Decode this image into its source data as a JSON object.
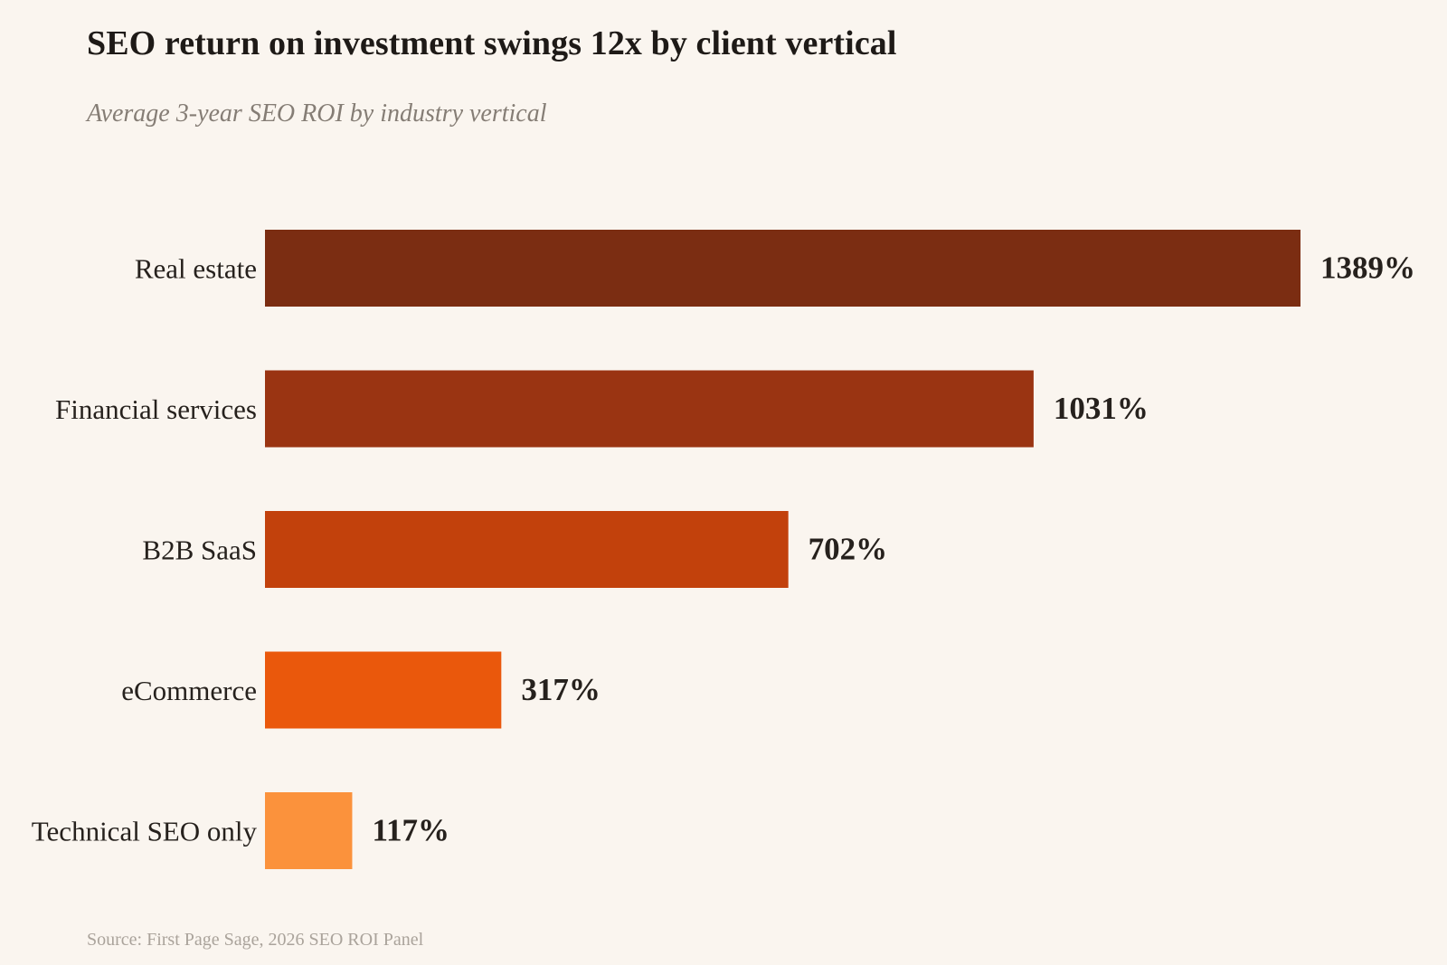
{
  "chart_data": {
    "type": "bar",
    "orientation": "horizontal",
    "title": "SEO return on investment swings 12x by client vertical",
    "subtitle": "Average 3-year SEO ROI by industry vertical",
    "categories": [
      "Real estate",
      "Financial services",
      "B2B SaaS",
      "eCommerce",
      "Technical SEO only"
    ],
    "values": [
      1389,
      1031,
      702,
      317,
      117
    ],
    "value_labels": [
      "1389%",
      "1031%",
      "702%",
      "317%",
      "117%"
    ],
    "colors": [
      "#7b2d12",
      "#9a3412",
      "#c2410c",
      "#ea580c",
      "#fb923c"
    ],
    "unit": "%",
    "xlim": [
      0,
      1389
    ],
    "grid": false,
    "legend": "none",
    "xlabel": "",
    "ylabel": ""
  },
  "source": "Source: First Page Sage, 2026 SEO ROI Panel"
}
